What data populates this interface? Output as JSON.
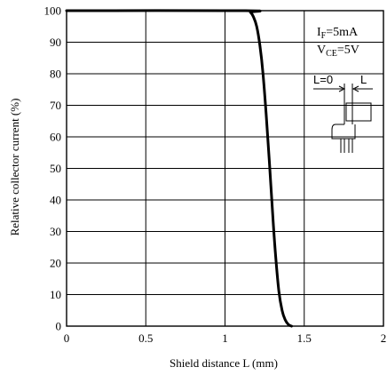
{
  "chart_data": {
    "type": "line",
    "xlabel": "Shield distance L (mm)",
    "ylabel": "Relative collector current (%)",
    "xlim": [
      0,
      2
    ],
    "ylim": [
      0,
      100
    ],
    "x_ticks": [
      "0",
      "0.5",
      "1",
      "1.5",
      "2"
    ],
    "y_ticks": [
      "0",
      "10",
      "20",
      "30",
      "40",
      "50",
      "60",
      "70",
      "80",
      "90",
      "100"
    ],
    "grid": true,
    "series": [
      {
        "x": [
          0,
          1.13,
          1.16,
          1.18,
          1.2,
          1.22,
          1.24,
          1.26,
          1.28,
          1.3,
          1.32,
          1.34,
          1.36,
          1.38,
          1.4,
          1.42
        ],
        "y": [
          100,
          100,
          99.5,
          98,
          95,
          89,
          80,
          67,
          52,
          36,
          22,
          11,
          5,
          2,
          0.5,
          0
        ]
      }
    ],
    "conditions": {
      "if_main": "I",
      "if_sub": "F",
      "if_value": "=5mA",
      "vce_main": "V",
      "vce_sub": "CE",
      "vce_value": "=5V"
    },
    "inset": {
      "label_left": "L=0",
      "label_right": "L"
    }
  }
}
